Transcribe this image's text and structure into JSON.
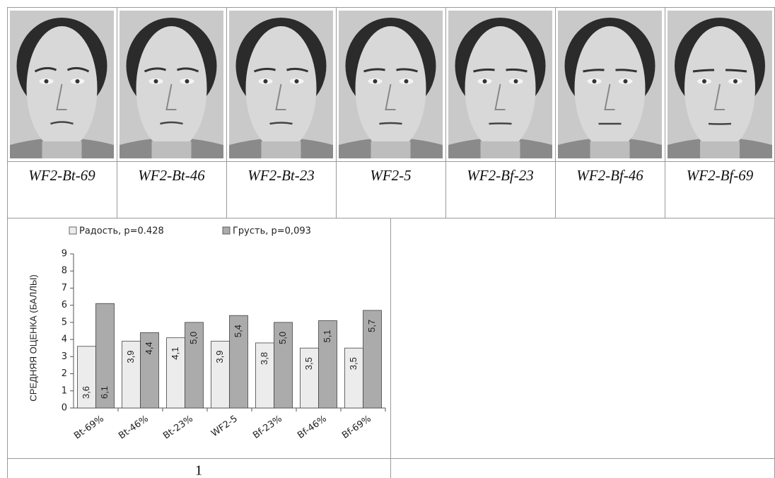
{
  "labels": [
    "WF2-Bt-69",
    "WF2-Bt-46",
    "WF2-Bt-23",
    "WF2-5",
    "WF2-Bf-23",
    "WF2-Bf-46",
    "WF2-Bf-69"
  ],
  "chart_data": {
    "type": "bar",
    "y_label": "СРЕДНЯЯ ОЦЕНКА (БАЛЛЫ)",
    "categories": [
      "Bt-69%",
      "Bt-46%",
      "Bt-23%",
      "WF2-5",
      "Bf-23%",
      "Bf-46%",
      "Bf-69%"
    ],
    "series": [
      {
        "name": "Радость, p=0.428",
        "color": "#ececec",
        "values": [
          3.6,
          3.9,
          4.1,
          3.9,
          3.8,
          3.5,
          3.5
        ],
        "value_labels": [
          "3,6",
          "3,9",
          "4,1",
          "3,9",
          "3,8",
          "3,5",
          "3,5"
        ]
      },
      {
        "name": "Грусть, p=0,093",
        "color": "#ababab",
        "values": [
          6.1,
          4.4,
          5.0,
          5.4,
          5.0,
          5.1,
          5.7
        ],
        "value_labels": [
          "6,1",
          "4,4",
          "5,0",
          "5,4",
          "5,0",
          "5,1",
          "5,7"
        ]
      }
    ],
    "ylim": [
      0,
      9
    ],
    "yticks": [
      0,
      1,
      2,
      3,
      4,
      5,
      6,
      7,
      8,
      9
    ]
  },
  "footer": "1"
}
